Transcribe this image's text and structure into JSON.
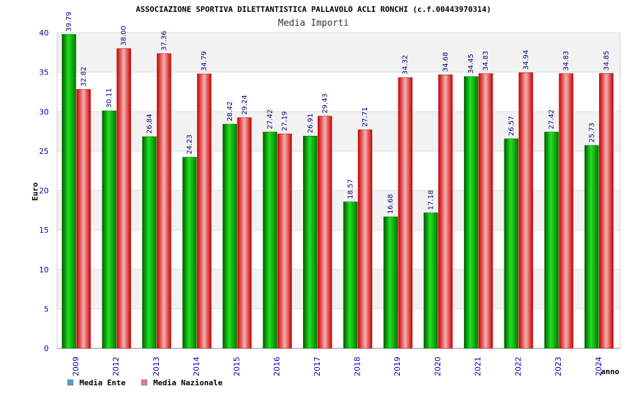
{
  "chart_data": {
    "type": "bar",
    "title": "ASSOCIAZIONE SPORTIVA DILETTANTISTICA PALLAVOLO ACLI RONCHI (c.f.00443970314)",
    "subtitle": "Media Importi",
    "xlabel": "anno",
    "ylabel": "Euro",
    "ylim": [
      0,
      40
    ],
    "yticks": [
      0,
      5,
      10,
      15,
      20,
      25,
      30,
      35,
      40
    ],
    "grid": true,
    "legend_position": "bottom-left",
    "categories": [
      "2009",
      "2012",
      "2013",
      "2014",
      "2015",
      "2016",
      "2017",
      "2018",
      "2019",
      "2020",
      "2021",
      "2022",
      "2023",
      "2024"
    ],
    "series": [
      {
        "name": "Media Ente",
        "color": "#00b000",
        "legend_color": "#5b9bd5",
        "values": [
          39.79,
          30.11,
          26.84,
          24.23,
          28.42,
          27.42,
          26.91,
          18.57,
          16.68,
          17.18,
          34.45,
          26.57,
          27.42,
          25.73
        ],
        "labels": [
          "39.79",
          "30.11",
          "26.84",
          "24.23",
          "28.42",
          "27.42",
          "26.91",
          "18.57",
          "16.68",
          "17.18",
          "34.45",
          "26.57",
          "27.42",
          "25.73"
        ]
      },
      {
        "name": "Media Nazionale",
        "color": "#e01010",
        "legend_color": "#e07aa0",
        "values": [
          32.82,
          38.0,
          37.36,
          34.79,
          29.24,
          27.19,
          29.43,
          27.71,
          34.32,
          34.68,
          34.83,
          34.94,
          34.83,
          34.85
        ],
        "labels": [
          "32.82",
          "38.00",
          "37.36",
          "34.79",
          "29.24",
          "27.19",
          "29.43",
          "27.71",
          "34.32",
          "34.68",
          "34.83",
          "34.94",
          "34.83",
          "34.85"
        ]
      }
    ]
  }
}
